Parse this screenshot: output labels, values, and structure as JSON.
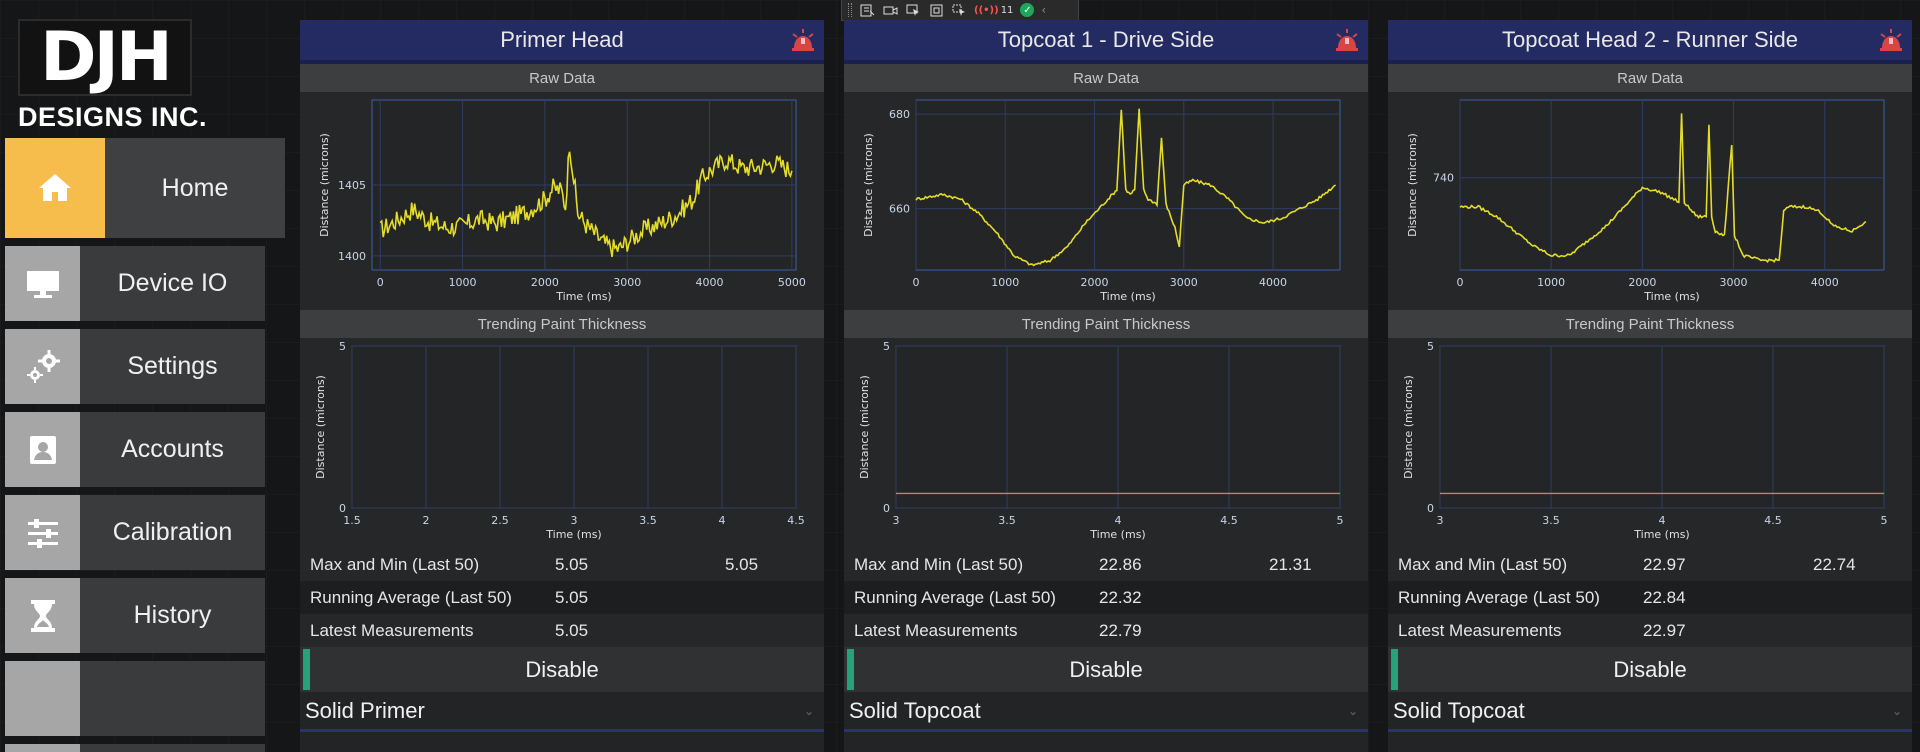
{
  "toolbar": {
    "items": [
      "frame-icon",
      "video-icon",
      "pointer-icon",
      "select-box-icon",
      "element-icon"
    ],
    "hot_reload_count": "11",
    "status": "ok"
  },
  "brand": {
    "logo_text": "DJH",
    "company": "DESIGNS INC."
  },
  "nav": {
    "items": [
      {
        "label": "Home",
        "icon": "home-icon",
        "active": true
      },
      {
        "label": "Device IO",
        "icon": "monitor-icon"
      },
      {
        "label": "Settings",
        "icon": "gears-icon"
      },
      {
        "label": "Accounts",
        "icon": "contact-card-icon"
      },
      {
        "label": "Calibration",
        "icon": "sliders-icon"
      },
      {
        "label": "History",
        "icon": "hourglass-icon"
      },
      {
        "label": "",
        "icon": ""
      }
    ]
  },
  "colors": {
    "header": "#242a62",
    "accent": "#f7bd4c",
    "enable_bar": "#25a27a",
    "raw_line": "#e4dc2a",
    "trend_line": "#d9747a"
  },
  "panels": [
    {
      "title": "Primer Head",
      "raw_label": "Raw Data",
      "trend_label": "Trending Paint Thickness",
      "stats": [
        {
          "label": "Max and Min (Last 50)",
          "v1": "5.05",
          "v2": "5.05"
        },
        {
          "label": "Running Average (Last 50)",
          "v1": "5.05",
          "v2": ""
        },
        {
          "label": "Latest Measurements",
          "v1": "5.05",
          "v2": ""
        }
      ],
      "disable_label": "Disable",
      "mode": "Solid Primer"
    },
    {
      "title": "Topcoat 1 - Drive Side",
      "raw_label": "Raw Data",
      "trend_label": "Trending Paint Thickness",
      "stats": [
        {
          "label": "Max and Min (Last 50)",
          "v1": "22.86",
          "v2": "21.31"
        },
        {
          "label": "Running Average (Last 50)",
          "v1": "22.32",
          "v2": ""
        },
        {
          "label": "Latest Measurements",
          "v1": "22.79",
          "v2": ""
        }
      ],
      "disable_label": "Disable",
      "mode": "Solid Topcoat"
    },
    {
      "title": "Topcoat Head 2 - Runner Side",
      "raw_label": "Raw Data",
      "trend_label": "Trending Paint Thickness",
      "stats": [
        {
          "label": "Max and Min (Last 50)",
          "v1": "22.97",
          "v2": "22.74"
        },
        {
          "label": "Running Average (Last 50)",
          "v1": "22.84",
          "v2": ""
        },
        {
          "label": "Latest Measurements",
          "v1": "22.97",
          "v2": ""
        }
      ],
      "disable_label": "Disable",
      "mode": "Solid Topcoat"
    }
  ],
  "chart_data": [
    {
      "type": "line",
      "panel": 0,
      "kind": "raw",
      "xlabel": "Time (ms)",
      "ylabel": "Distance (microns)",
      "xlim": [
        -100,
        5050
      ],
      "ylim": [
        1399,
        1411
      ],
      "xticks": [
        0,
        1000,
        2000,
        3000,
        4000,
        5000
      ],
      "yticks": [
        1400,
        1405
      ],
      "series": [
        {
          "x": [
            0,
            200,
            400,
            600,
            800,
            1000,
            1200,
            1400,
            1600,
            1800,
            2000,
            2100,
            2200,
            2250,
            2300,
            2400,
            2500,
            2600,
            2700,
            2800,
            2900,
            3000,
            3200,
            3400,
            3600,
            3800,
            3900,
            4000,
            4200,
            4400,
            4600,
            4800,
            5000
          ],
          "y": [
            1401.8,
            1402.5,
            1403.3,
            1402.4,
            1402.0,
            1402.1,
            1402.6,
            1402.3,
            1402.7,
            1403.2,
            1404.0,
            1404.8,
            1404.6,
            1403.5,
            1408.0,
            1403.0,
            1402.2,
            1401.6,
            1401.0,
            1400.6,
            1400.5,
            1401.0,
            1401.8,
            1402.3,
            1402.9,
            1404.0,
            1405.4,
            1406.0,
            1406.8,
            1406.2,
            1406.3,
            1406.6,
            1406.0
          ]
        }
      ],
      "noise": 0.7
    },
    {
      "type": "line",
      "panel": 0,
      "kind": "trend",
      "xlabel": "Time (ms)",
      "ylabel": "Distance (microns)",
      "xlim": [
        1.5,
        4.5
      ],
      "ylim": [
        0,
        5
      ],
      "xticks": [
        1.5,
        2,
        2.5,
        3,
        3.5,
        4,
        4.5
      ],
      "yticks": [
        0,
        5
      ],
      "series": []
    },
    {
      "type": "line",
      "panel": 1,
      "kind": "raw",
      "xlabel": "Time (ms)",
      "ylabel": "Distance (microns)",
      "xlim": [
        0,
        4750
      ],
      "ylim": [
        647,
        683
      ],
      "xticks": [
        0,
        1000,
        2000,
        3000,
        4000
      ],
      "yticks": [
        660,
        680
      ],
      "series": [
        {
          "x": [
            0,
            300,
            500,
            700,
            900,
            1100,
            1300,
            1500,
            1700,
            1900,
            2100,
            2200,
            2250,
            2300,
            2350,
            2400,
            2450,
            2500,
            2550,
            2600,
            2700,
            2750,
            2800,
            2900,
            2950,
            3000,
            3100,
            3300,
            3500,
            3700,
            3900,
            4100,
            4300,
            4500,
            4700
          ],
          "y": [
            662,
            663,
            662,
            659,
            655,
            650,
            648,
            649,
            652,
            657,
            661,
            663,
            664,
            681,
            664,
            663,
            664,
            681,
            664,
            662,
            661,
            675,
            661,
            656,
            652,
            665,
            666,
            665,
            662,
            658,
            657,
            658,
            660,
            662,
            665
          ]
        }
      ],
      "noise": 0.3
    },
    {
      "type": "line",
      "panel": 1,
      "kind": "trend",
      "xlabel": "Time (ms)",
      "ylabel": "Distance (microns)",
      "xlim": [
        3,
        5
      ],
      "ylim": [
        0,
        5
      ],
      "xticks": [
        3,
        3.5,
        4,
        4.5,
        5
      ],
      "yticks": [
        0,
        5
      ],
      "series": [
        {
          "x": [
            3,
            5
          ],
          "y": [
            0.45,
            0.45
          ]
        }
      ]
    },
    {
      "type": "line",
      "panel": 2,
      "kind": "raw",
      "xlabel": "Time (ms)",
      "ylabel": "Distance (microns)",
      "xlim": [
        0,
        4650
      ],
      "ylim": [
        721,
        756
      ],
      "xticks": [
        0,
        1000,
        2000,
        3000,
        4000
      ],
      "yticks": [
        740
      ],
      "series": [
        {
          "x": [
            0,
            200,
            400,
            600,
            800,
            1000,
            1200,
            1400,
            1600,
            1800,
            2000,
            2200,
            2400,
            2430,
            2460,
            2500,
            2600,
            2700,
            2730,
            2760,
            2800,
            2900,
            2980,
            3010,
            3040,
            3100,
            3300,
            3500,
            3550,
            3600,
            3800,
            3950,
            4100,
            4300,
            4450
          ],
          "y": [
            734,
            734,
            732,
            729,
            726,
            724,
            724,
            727,
            730,
            734,
            738,
            737,
            735,
            753,
            735,
            734,
            732,
            732,
            751,
            732,
            729,
            728,
            747,
            728,
            727,
            724,
            723,
            723,
            733,
            734,
            734,
            733,
            730,
            729,
            731
          ]
        }
      ],
      "noise": 0.3
    },
    {
      "type": "line",
      "panel": 2,
      "kind": "trend",
      "xlabel": "Time (ms)",
      "ylabel": "Distance (microns)",
      "xlim": [
        3,
        5
      ],
      "ylim": [
        0,
        5
      ],
      "xticks": [
        3,
        3.5,
        4,
        4.5,
        5
      ],
      "yticks": [
        0,
        5
      ],
      "series": [
        {
          "x": [
            3,
            5
          ],
          "y": [
            0.45,
            0.45
          ]
        }
      ]
    }
  ]
}
